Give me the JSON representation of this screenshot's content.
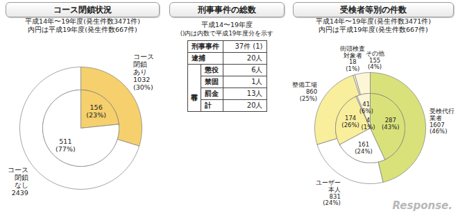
{
  "chart_data": [
    {
      "type": "pie",
      "title": "コース閉鎖状況",
      "subtitle": [
        "平成14年〜19年度(発生件数3471件)",
        "内円は平成19年度(発生件数667件)"
      ],
      "categories": [
        "コース閉鎖あり",
        "コース閉鎖なし"
      ],
      "series": [
        {
          "values": [
            1032,
            2439
          ],
          "percent_labels": [
            "(30%)",
            null
          ],
          "colors": [
            "#f5d06c",
            "#ffffff"
          ]
        },
        {
          "values": [
            156,
            511
          ],
          "percent_labels": [
            "(23%)",
            "(77%)"
          ],
          "colors": [
            "#f5d06c",
            "#ffffff"
          ]
        }
      ],
      "data_labels": true
    },
    {
      "type": "pie",
      "title": "受検者等別の件数",
      "subtitle": [
        "平成14年〜19年度(発生件数3471件)",
        "内円は平成19年度(発生件数667件)"
      ],
      "categories": [
        "受検代行業者",
        "ユーザー本人",
        "整備工場",
        "街頭検査対象者",
        "その他"
      ],
      "series": [
        {
          "values": [
            1607,
            831,
            860,
            18,
            155
          ],
          "percent_labels": [
            "(46%)",
            "(24%)",
            "(25%)",
            "(1%)",
            "(4%)"
          ],
          "colors": [
            "#d9e27a",
            "#ffffff",
            "#f8ee9c",
            "#ffffff",
            "#fdf6d6"
          ]
        },
        {
          "values": [
            287,
            161,
            174,
            4,
            41
          ],
          "percent_labels": [
            "(43%)",
            "(24%)",
            "(26%)",
            "(1%)",
            "(6%)"
          ],
          "colors": [
            "#d9e27a",
            "#ffffff",
            "#f8ee9c",
            "#ffffff",
            "#fdf6d6"
          ]
        }
      ],
      "data_labels": true
    }
  ],
  "table": {
    "title": "刑事事件の総数",
    "subtitle": "平成14〜19年度",
    "note": "()内は内数で平成19年度分を示す",
    "rows": [
      {
        "label": "刑事事件",
        "value": "37件 (1)"
      },
      {
        "label": "逮捕",
        "value": "20人"
      },
      {
        "group": "有罪",
        "label": "懲役",
        "value": "6人"
      },
      {
        "group": "有罪",
        "label": "禁固",
        "value": "1人"
      },
      {
        "group": "有罪",
        "label": "罰金",
        "value": "13人"
      },
      {
        "group": "有罪",
        "label": "計",
        "value": "20人"
      }
    ]
  },
  "watermark": "Response."
}
